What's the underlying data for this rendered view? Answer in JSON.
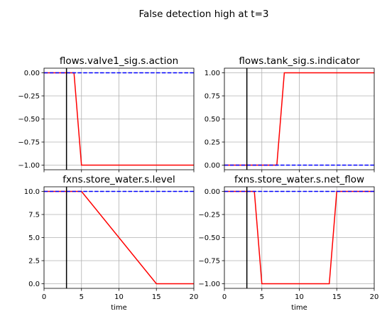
{
  "figure": {
    "suptitle": "False detection high at t=3"
  },
  "chart_data": [
    {
      "type": "line",
      "title": "flows.valve1_sig.s.action",
      "xlabel": "",
      "ylabel": "",
      "xlim": [
        0,
        20
      ],
      "ylim": [
        -1.05,
        0.05
      ],
      "xticks": [
        0,
        5,
        10,
        15,
        20
      ],
      "yticks": [
        0.0,
        -0.25,
        -0.5,
        -0.75,
        -1.0
      ],
      "ytick_labels": [
        "0.00",
        "−0.25",
        "−0.50",
        "−0.75",
        "−1.00"
      ],
      "show_xtick_labels": false,
      "grid": true,
      "vline": 3,
      "series": [
        {
          "color": "#ff0000",
          "dash": "solid",
          "x": [
            0,
            4,
            5,
            20
          ],
          "y": [
            0,
            0,
            -1,
            -1
          ]
        },
        {
          "color": "#0000ff",
          "dash": "dashed",
          "x": [
            0,
            20
          ],
          "y": [
            0,
            0
          ]
        }
      ]
    },
    {
      "type": "line",
      "title": "flows.tank_sig.s.indicator",
      "xlabel": "",
      "ylabel": "",
      "xlim": [
        0,
        20
      ],
      "ylim": [
        -0.05,
        1.05
      ],
      "xticks": [
        0,
        5,
        10,
        15,
        20
      ],
      "yticks": [
        0.0,
        0.25,
        0.5,
        0.75,
        1.0
      ],
      "ytick_labels": [
        "0.00",
        "0.25",
        "0.50",
        "0.75",
        "1.00"
      ],
      "show_xtick_labels": false,
      "grid": true,
      "vline": 3,
      "series": [
        {
          "color": "#ff0000",
          "dash": "solid",
          "x": [
            0,
            7,
            8,
            20
          ],
          "y": [
            0,
            0,
            1,
            1
          ]
        },
        {
          "color": "#0000ff",
          "dash": "dashed",
          "x": [
            0,
            20
          ],
          "y": [
            0,
            0
          ]
        }
      ]
    },
    {
      "type": "line",
      "title": "fxns.store_water.s.level",
      "xlabel": "time",
      "ylabel": "",
      "xlim": [
        0,
        20
      ],
      "ylim": [
        -0.5,
        10.5
      ],
      "xticks": [
        0,
        5,
        10,
        15,
        20
      ],
      "xtick_labels": [
        "0",
        "5",
        "10",
        "15",
        "20"
      ],
      "yticks": [
        0.0,
        2.5,
        5.0,
        7.5,
        10.0
      ],
      "ytick_labels": [
        "0.0",
        "2.5",
        "5.0",
        "7.5",
        "10.0"
      ],
      "show_xtick_labels": true,
      "grid": true,
      "vline": 3,
      "series": [
        {
          "color": "#ff0000",
          "dash": "solid",
          "x": [
            0,
            5,
            15,
            20
          ],
          "y": [
            10,
            10,
            0,
            0
          ]
        },
        {
          "color": "#0000ff",
          "dash": "dashed",
          "x": [
            0,
            20
          ],
          "y": [
            10,
            10
          ]
        }
      ]
    },
    {
      "type": "line",
      "title": "fxns.store_water.s.net_flow",
      "xlabel": "time",
      "ylabel": "",
      "xlim": [
        0,
        20
      ],
      "ylim": [
        -1.05,
        0.05
      ],
      "xticks": [
        0,
        5,
        10,
        15,
        20
      ],
      "xtick_labels": [
        "0",
        "5",
        "10",
        "15",
        "20"
      ],
      "yticks": [
        0.0,
        -0.25,
        -0.5,
        -0.75,
        -1.0
      ],
      "ytick_labels": [
        "0.00",
        "−0.25",
        "−0.50",
        "−0.75",
        "−1.00"
      ],
      "show_xtick_labels": true,
      "grid": true,
      "vline": 3,
      "series": [
        {
          "color": "#ff0000",
          "dash": "solid",
          "x": [
            0,
            4,
            5,
            14,
            15,
            20
          ],
          "y": [
            0,
            0,
            -1,
            -1,
            0,
            0
          ]
        },
        {
          "color": "#0000ff",
          "dash": "dashed",
          "x": [
            0,
            20
          ],
          "y": [
            0,
            0
          ]
        }
      ]
    }
  ]
}
